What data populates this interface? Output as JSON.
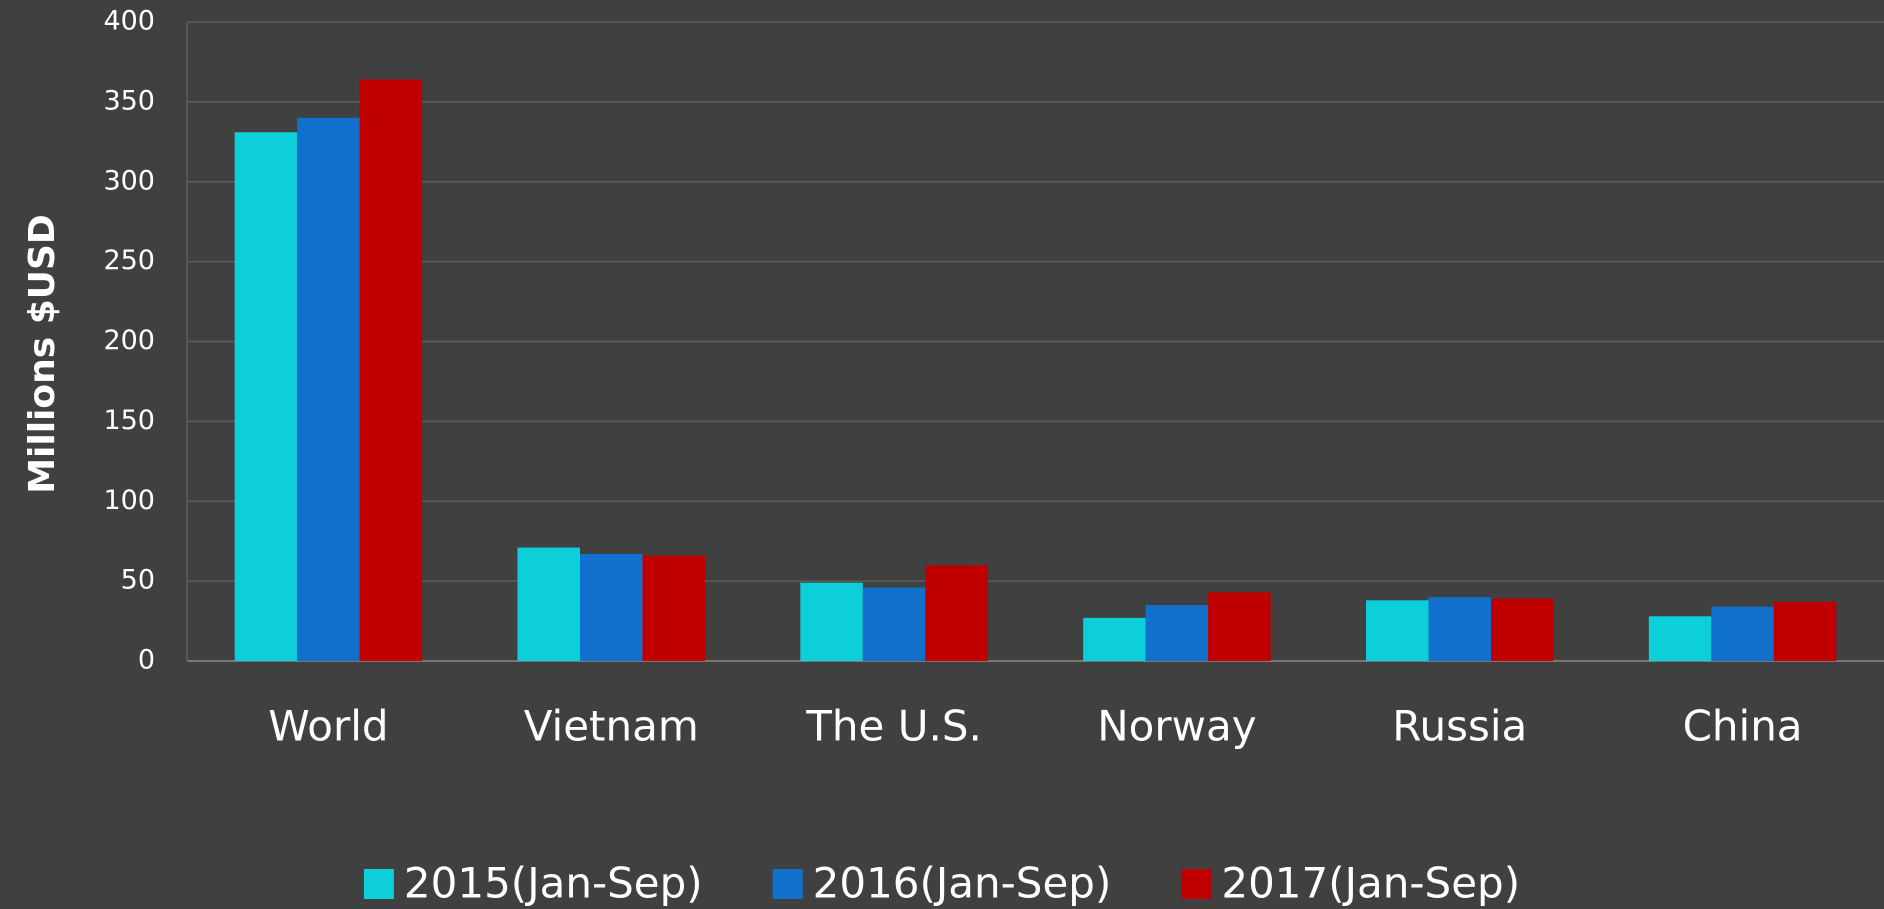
{
  "chart_data": {
    "type": "bar",
    "y_label": "Millions $USD",
    "categories": [
      "World",
      "Vietnam",
      "The U.S.",
      "Norway",
      "Russia",
      "China"
    ],
    "series": [
      {
        "name": "2015(Jan-Sep)",
        "color": "#0ccfd9",
        "values": [
          331,
          71,
          49,
          27,
          38,
          28
        ]
      },
      {
        "name": "2016(Jan-Sep)",
        "color": "#1170cc",
        "values": [
          340,
          67,
          46,
          35,
          40,
          34
        ]
      },
      {
        "name": "2017(Jan-Sep)",
        "color": "#c00000",
        "values": [
          364,
          66,
          60,
          43,
          39,
          37
        ]
      }
    ],
    "ylim": [
      0,
      400
    ],
    "yticks": [
      0,
      50,
      100,
      150,
      200,
      250,
      300,
      350,
      400
    ],
    "grid": true,
    "legend": "bottom"
  }
}
